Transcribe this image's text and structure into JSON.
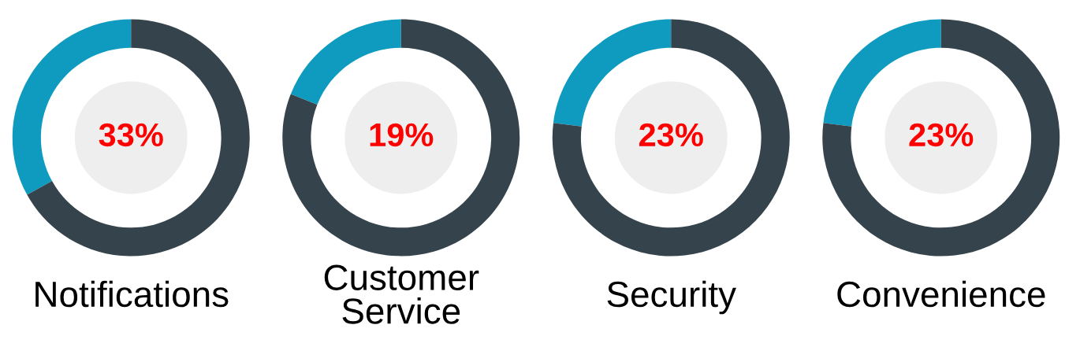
{
  "chart_data": [
    {
      "type": "donut",
      "title": "Notifications",
      "categories": [
        null,
        null
      ],
      "values": [
        33,
        67
      ],
      "colors": [
        "#0e9bbf",
        "#35444c"
      ],
      "annotations": [
        "33%"
      ]
    },
    {
      "type": "donut",
      "title": "Customer\nService",
      "categories": [
        null,
        null
      ],
      "values": [
        19,
        81
      ],
      "colors": [
        "#0e9bbf",
        "#35444c"
      ],
      "annotations": [
        "19%"
      ]
    },
    {
      "type": "donut",
      "title": "Security",
      "categories": [
        null,
        null
      ],
      "values": [
        23,
        77
      ],
      "colors": [
        "#0e9bbf",
        "#35444c"
      ],
      "annotations": [
        "23%"
      ]
    },
    {
      "type": "donut",
      "title": "Convenience",
      "categories": [
        null,
        null
      ],
      "values": [
        23,
        77
      ],
      "colors": [
        "#0e9bbf",
        "#35444c"
      ],
      "annotations": [
        "23%"
      ]
    }
  ]
}
